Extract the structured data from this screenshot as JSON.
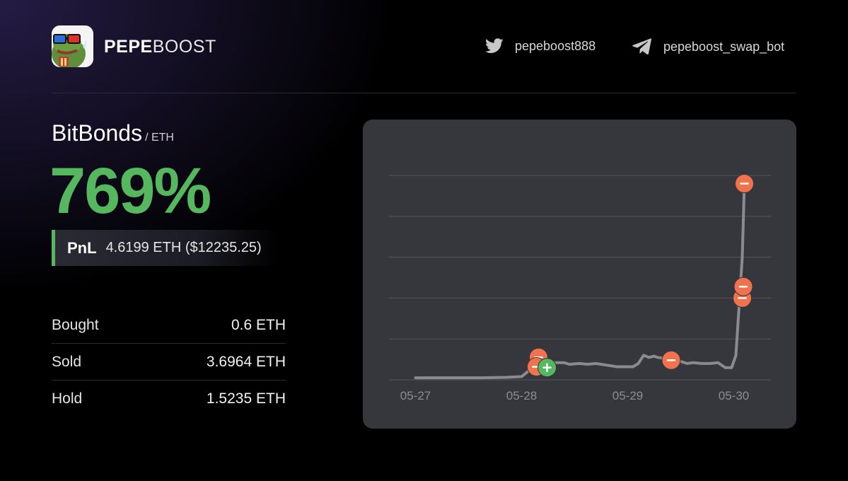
{
  "brand": {
    "name_bold": "PEPE",
    "name_regular": "BOOST",
    "logo": "pepe-frog-3d-glasses"
  },
  "social": {
    "twitter": {
      "icon": "twitter-bird-icon",
      "handle": "pepeboost888"
    },
    "telegram": {
      "icon": "telegram-plane-icon",
      "handle": "pepeboost_swap_bot"
    }
  },
  "token": {
    "name": "BitBonds",
    "pair": "/ ETH"
  },
  "performance": {
    "percent": "769%",
    "pnl_label": "PnL",
    "pnl_value": "4.6199 ETH ($12235.25)"
  },
  "stats": [
    {
      "label": "Bought",
      "value": "0.6 ETH"
    },
    {
      "label": "Sold",
      "value": "3.6964 ETH"
    },
    {
      "label": "Hold",
      "value": "1.5235 ETH"
    }
  ],
  "colors": {
    "accent_green": "#55b85f",
    "sell_marker": "#f0734e",
    "buy_marker": "#55b85f",
    "line": "#8b8b8f",
    "card_bg": "#36373c"
  },
  "chart_data": {
    "type": "line",
    "x_ticks": [
      "05-27",
      "05-28",
      "05-29",
      "05-30"
    ],
    "y_gridlines": 5,
    "series": [
      {
        "x": [
          0.0,
          0.6,
          0.85,
          1.0,
          1.08,
          1.14,
          1.18,
          1.24,
          1.3,
          1.4,
          1.45,
          1.55,
          1.62,
          1.7,
          1.8,
          1.9,
          1.97,
          2.05,
          2.1,
          2.15,
          2.2,
          2.25,
          2.28,
          2.35,
          2.42,
          2.5,
          2.56,
          2.62,
          2.7,
          2.78,
          2.85,
          2.92,
          2.98,
          3.02,
          3.05,
          3.08,
          3.1
        ],
        "y": [
          0.05,
          0.05,
          0.06,
          0.08,
          0.25,
          0.4,
          0.42,
          0.48,
          0.42,
          0.42,
          0.38,
          0.4,
          0.38,
          0.4,
          0.36,
          0.32,
          0.32,
          0.32,
          0.4,
          0.6,
          0.55,
          0.58,
          0.55,
          0.52,
          0.48,
          0.45,
          0.4,
          0.42,
          0.4,
          0.4,
          0.42,
          0.3,
          0.3,
          0.6,
          1.8,
          3.0,
          4.8
        ]
      }
    ],
    "markers": [
      {
        "type": "sell",
        "x": 1.16,
        "y": 0.55
      },
      {
        "type": "sell",
        "x": 1.14,
        "y": 0.32
      },
      {
        "type": "buy",
        "x": 1.24,
        "y": 0.3
      },
      {
        "type": "sell",
        "x": 2.41,
        "y": 0.48
      },
      {
        "type": "sell",
        "x": 3.08,
        "y": 2.0
      },
      {
        "type": "sell",
        "x": 3.09,
        "y": 2.28
      },
      {
        "type": "sell",
        "x": 3.1,
        "y": 4.8
      }
    ],
    "xlim": [
      -0.25,
      3.35
    ],
    "ylim": [
      0,
      5
    ],
    "grid": true
  }
}
